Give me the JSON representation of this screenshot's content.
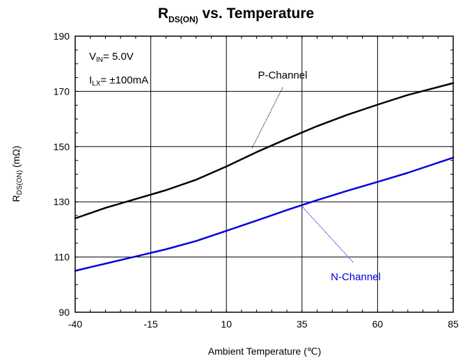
{
  "chart_data": {
    "type": "line",
    "title": {
      "main": "R",
      "sub": "DS(ON)",
      "rest": " vs. Temperature"
    },
    "xlabel": "Ambient Temperature (℃)",
    "ylabel": {
      "main": "R",
      "sub": "DS(ON)",
      "rest": " (mΩ)"
    },
    "xlim": [
      -40,
      85
    ],
    "ylim": [
      90,
      190
    ],
    "x_ticks": [
      -40,
      -15,
      10,
      35,
      60,
      85
    ],
    "x_tick_labels": [
      "-40",
      "-15",
      "10",
      "35",
      "60",
      "85"
    ],
    "y_ticks": [
      90,
      110,
      130,
      150,
      170,
      190
    ],
    "y_tick_labels": [
      "90",
      "110",
      "130",
      "150",
      "170",
      "190"
    ],
    "grid": true,
    "conditions": [
      {
        "main": "V",
        "sub": "IN",
        "rest": "= 5.0V"
      },
      {
        "main": "I",
        "sub": "LX",
        "rest": "= ±100mA"
      }
    ],
    "series": [
      {
        "name": "P-Channel",
        "color": "#000000",
        "x": [
          -40,
          -30,
          -20,
          -10,
          0,
          10,
          20,
          30,
          40,
          50,
          60,
          70,
          85
        ],
        "y": [
          124,
          127.8,
          131,
          134.2,
          138,
          142.8,
          148,
          152.8,
          157.4,
          161.5,
          165.2,
          168.7,
          173
        ]
      },
      {
        "name": "N-Channel",
        "color": "#0000dd",
        "x": [
          -40,
          -30,
          -20,
          -10,
          0,
          10,
          20,
          30,
          40,
          50,
          60,
          70,
          85
        ],
        "y": [
          105,
          107.6,
          110.2,
          112.8,
          115.8,
          119.5,
          123.2,
          127,
          130.6,
          134,
          137.2,
          140.5,
          146
        ]
      }
    ]
  }
}
